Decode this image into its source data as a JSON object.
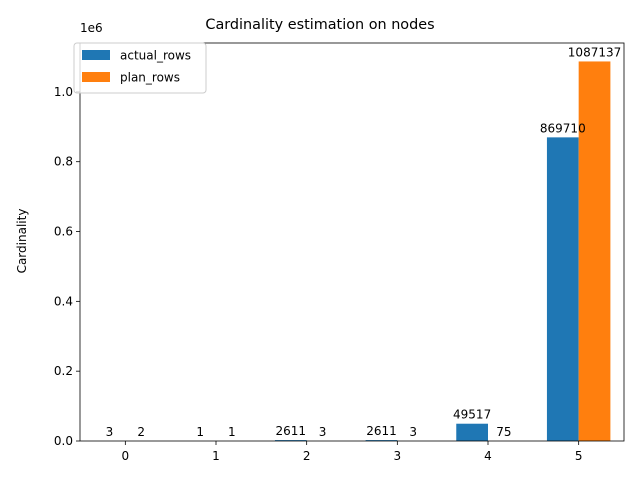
{
  "chart_data": {
    "type": "bar",
    "title": "Cardinality estimation on nodes",
    "xlabel": "",
    "ylabel": "Cardinality",
    "y_offset_label": "1e6",
    "ylim": [
      0,
      1140000
    ],
    "y_ticks": [
      {
        "value": 0,
        "label": "0.0"
      },
      {
        "value": 200000,
        "label": "0.2"
      },
      {
        "value": 400000,
        "label": "0.4"
      },
      {
        "value": 600000,
        "label": "0.6"
      },
      {
        "value": 800000,
        "label": "0.8"
      },
      {
        "value": 1000000,
        "label": "1.0"
      }
    ],
    "categories": [
      "0",
      "1",
      "2",
      "3",
      "4",
      "5"
    ],
    "series": [
      {
        "name": "actual_rows",
        "color": "#1f77b4",
        "values": [
          3,
          1,
          2611,
          2611,
          49517,
          869710
        ]
      },
      {
        "name": "plan_rows",
        "color": "#ff7f0e",
        "values": [
          2,
          1,
          3,
          3,
          75,
          1087137
        ]
      }
    ],
    "legend_position": "top-left",
    "grid": false
  }
}
